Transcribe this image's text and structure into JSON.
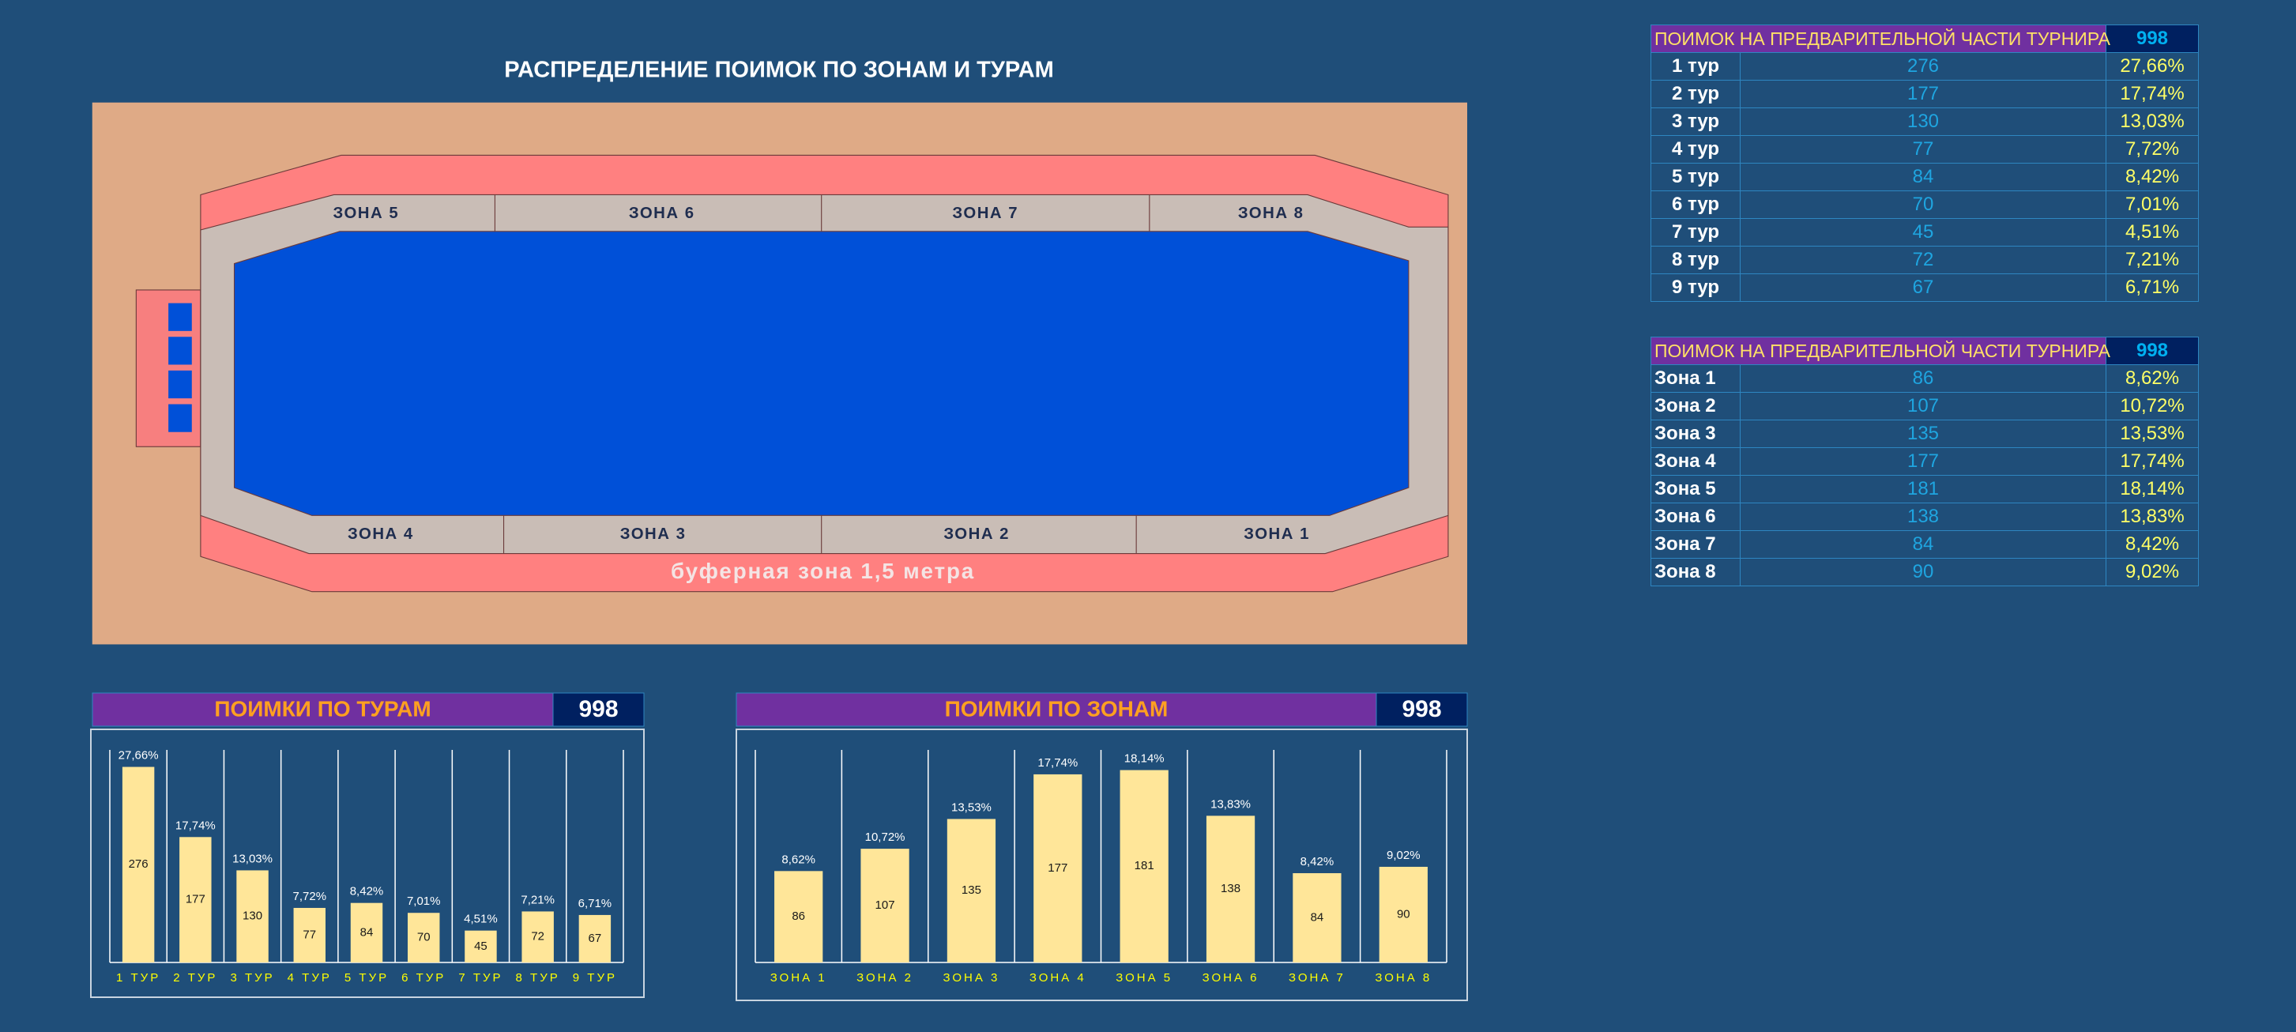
{
  "title": "РАСПРЕДЕЛЕНИЕ ПОИМОК ПО ЗОНАМ И ТУРАМ",
  "map": {
    "top_zones": [
      "ЗОНА 5",
      "ЗОНА 6",
      "ЗОНА 7",
      "ЗОНА 8"
    ],
    "bottom_zones": [
      "ЗОНА 4",
      "ЗОНА 3",
      "ЗОНА 2",
      "ЗОНА 1"
    ],
    "buffer": "буферная зона 1,5 метра"
  },
  "tables": [
    {
      "header": "ПОИМОК НА ПРЕДВАРИТЕЛЬНОЙ ЧАСТИ ТУРНИРА",
      "total": 998,
      "rows": [
        [
          "1 тур",
          276,
          "27,66%"
        ],
        [
          "2 тур",
          177,
          "17,74%"
        ],
        [
          "3 тур",
          130,
          "13,03%"
        ],
        [
          "4 тур",
          77,
          "7,72%"
        ],
        [
          "5 тур",
          84,
          "8,42%"
        ],
        [
          "6 тур",
          70,
          "7,01%"
        ],
        [
          "7 тур",
          45,
          "4,51%"
        ],
        [
          "8 тур",
          72,
          "7,21%"
        ],
        [
          "9 тур",
          67,
          "6,71%"
        ]
      ]
    },
    {
      "header": "ПОИМОК НА ПРЕДВАРИТЕЛЬНОЙ ЧАСТИ ТУРНИРА",
      "total": 998,
      "rows": [
        [
          "Зона 1",
          86,
          "8,62%"
        ],
        [
          "Зона 2",
          107,
          "10,72%"
        ],
        [
          "Зона 3",
          135,
          "13,53%"
        ],
        [
          "Зона 4",
          177,
          "17,74%"
        ],
        [
          "Зона 5",
          181,
          "18,14%"
        ],
        [
          "Зона 6",
          138,
          "13,83%"
        ],
        [
          "Зона 7",
          84,
          "8,42%"
        ],
        [
          "Зона 8",
          90,
          "9,02%"
        ]
      ]
    }
  ],
  "chart_data": [
    {
      "type": "bar",
      "title": "ПОИМКИ ПО ТУРАМ",
      "total": 998,
      "color": "#ffe699",
      "categories": [
        "1 ТУР",
        "2 ТУР",
        "3 ТУР",
        "4 ТУР",
        "5 ТУР",
        "6 ТУР",
        "7 ТУР",
        "8 ТУР",
        "9 ТУР"
      ],
      "values": [
        276,
        177,
        130,
        77,
        84,
        70,
        45,
        72,
        67
      ],
      "percent_labels": [
        "27,66%",
        "17,74%",
        "13,03%",
        "7,72%",
        "8,42%",
        "7,01%",
        "4,51%",
        "7,21%",
        "6,71%"
      ],
      "ylim": [
        0,
        300
      ]
    },
    {
      "type": "bar",
      "title": "ПОИМКИ ПО ЗОНАМ",
      "total": 998,
      "color": "#ffe699",
      "categories": [
        "ЗОНА 1",
        "ЗОНА 2",
        "ЗОНА 3",
        "ЗОНА 4",
        "ЗОНА 5",
        "ЗОНА 6",
        "ЗОНА 7",
        "ЗОНА 8"
      ],
      "values": [
        86,
        107,
        135,
        177,
        181,
        138,
        84,
        90
      ],
      "percent_labels": [
        "8,62%",
        "10,72%",
        "13,53%",
        "17,74%",
        "18,14%",
        "13,83%",
        "8,42%",
        "9,02%"
      ],
      "ylim": [
        0,
        200
      ]
    }
  ]
}
